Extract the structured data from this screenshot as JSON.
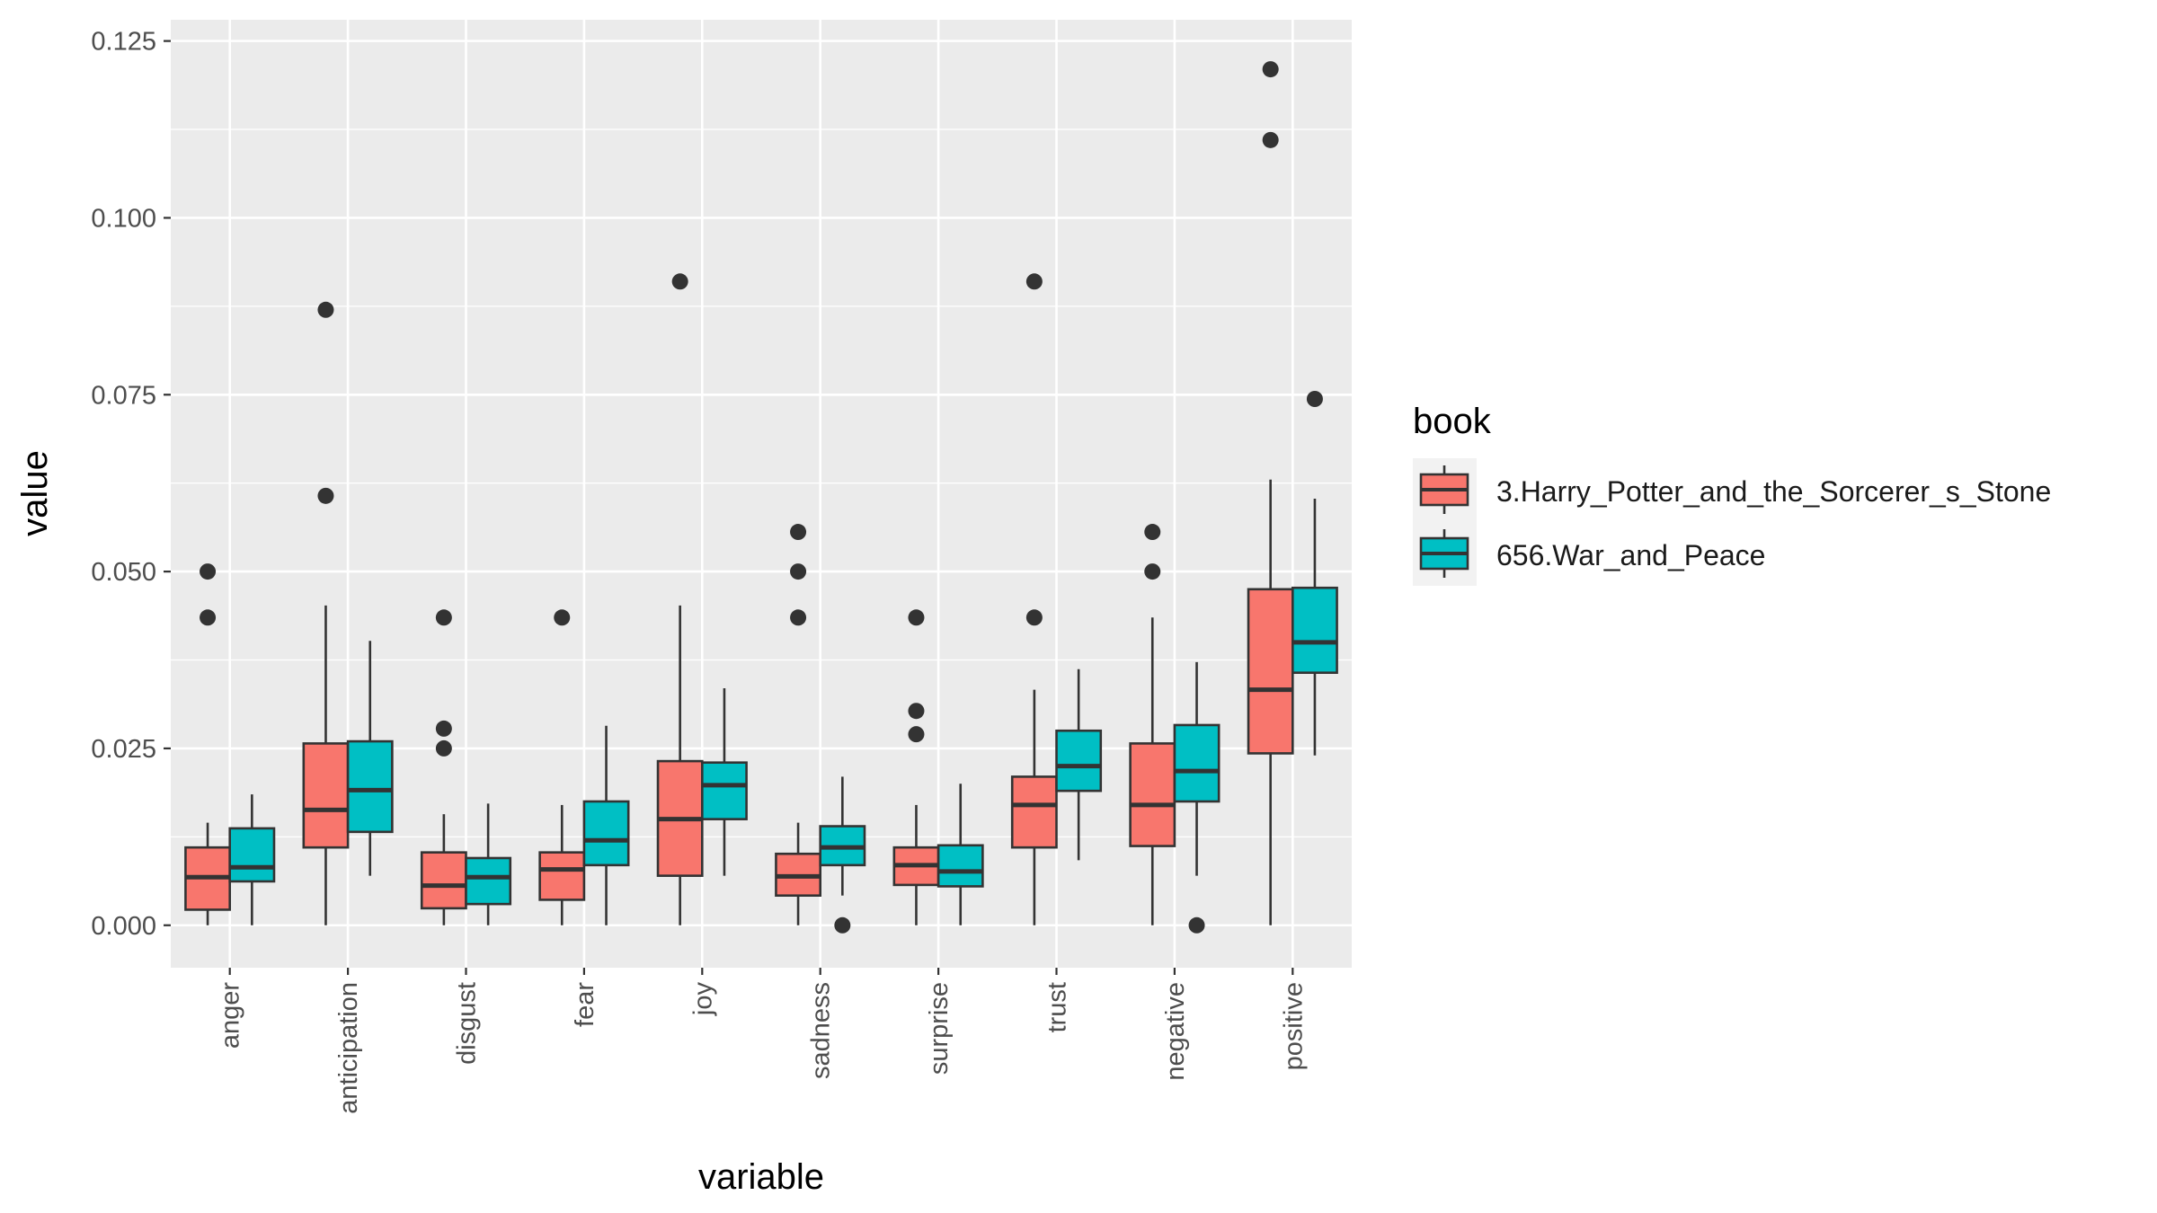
{
  "chart_data": {
    "type": "boxplot",
    "xlabel": "variable",
    "ylabel": "value",
    "ylim": [
      -0.006,
      0.128
    ],
    "y_ticks": [
      0.0,
      0.025,
      0.05,
      0.075,
      0.1,
      0.125
    ],
    "y_tick_labels": [
      "0.000",
      "0.025",
      "0.050",
      "0.075",
      "0.100",
      "0.125"
    ],
    "categories": [
      "anger",
      "anticipation",
      "disgust",
      "fear",
      "joy",
      "sadness",
      "surprise",
      "trust",
      "negative",
      "positive"
    ],
    "legend": {
      "title": "book",
      "placement": "right"
    },
    "grid": true,
    "series": [
      {
        "name": "3.Harry_Potter_and_the_Sorcerer_s_Stone",
        "color": "#F8766D",
        "boxes": [
          {
            "min": 0.0,
            "q1": 0.0022,
            "median": 0.0068,
            "q3": 0.011,
            "max": 0.0145,
            "outliers": [
              0.0435,
              0.05
            ]
          },
          {
            "min": 0.0,
            "q1": 0.011,
            "median": 0.0163,
            "q3": 0.0257,
            "max": 0.0452,
            "outliers": [
              0.0607,
              0.087
            ]
          },
          {
            "min": 0.0,
            "q1": 0.0024,
            "median": 0.0056,
            "q3": 0.0103,
            "max": 0.0157,
            "outliers": [
              0.025,
              0.0278,
              0.0435
            ]
          },
          {
            "min": 0.0,
            "q1": 0.0036,
            "median": 0.0079,
            "q3": 0.0103,
            "max": 0.017,
            "outliers": [
              0.0435
            ]
          },
          {
            "min": 0.0,
            "q1": 0.007,
            "median": 0.015,
            "q3": 0.0232,
            "max": 0.0452,
            "outliers": [
              0.091
            ]
          },
          {
            "min": 0.0,
            "q1": 0.0042,
            "median": 0.0069,
            "q3": 0.0101,
            "max": 0.0145,
            "outliers": [
              0.0435,
              0.05,
              0.0556
            ]
          },
          {
            "min": 0.0,
            "q1": 0.0057,
            "median": 0.0085,
            "q3": 0.011,
            "max": 0.017,
            "outliers": [
              0.027,
              0.0303,
              0.0435
            ]
          },
          {
            "min": 0.0,
            "q1": 0.011,
            "median": 0.017,
            "q3": 0.021,
            "max": 0.0333,
            "outliers": [
              0.0435,
              0.091
            ]
          },
          {
            "min": 0.0,
            "q1": 0.0112,
            "median": 0.017,
            "q3": 0.0257,
            "max": 0.0435,
            "outliers": [
              0.05,
              0.0556
            ]
          },
          {
            "min": 0.0,
            "q1": 0.0243,
            "median": 0.0333,
            "q3": 0.0475,
            "max": 0.063,
            "outliers": [
              0.111,
              0.121
            ]
          }
        ]
      },
      {
        "name": "656.War_and_Peace",
        "color": "#00BFC4",
        "boxes": [
          {
            "min": 0.0,
            "q1": 0.0062,
            "median": 0.0082,
            "q3": 0.0137,
            "max": 0.0185,
            "outliers": []
          },
          {
            "min": 0.007,
            "q1": 0.0132,
            "median": 0.0191,
            "q3": 0.026,
            "max": 0.0402,
            "outliers": []
          },
          {
            "min": 0.0,
            "q1": 0.003,
            "median": 0.0068,
            "q3": 0.0095,
            "max": 0.0172,
            "outliers": []
          },
          {
            "min": 0.0,
            "q1": 0.0085,
            "median": 0.012,
            "q3": 0.0175,
            "max": 0.0282,
            "outliers": []
          },
          {
            "min": 0.007,
            "q1": 0.015,
            "median": 0.0198,
            "q3": 0.023,
            "max": 0.0335,
            "outliers": []
          },
          {
            "min": 0.0042,
            "q1": 0.0085,
            "median": 0.011,
            "q3": 0.014,
            "max": 0.021,
            "outliers": [
              0.0
            ]
          },
          {
            "min": 0.0,
            "q1": 0.0055,
            "median": 0.0076,
            "q3": 0.0113,
            "max": 0.02,
            "outliers": []
          },
          {
            "min": 0.0092,
            "q1": 0.019,
            "median": 0.0225,
            "q3": 0.0275,
            "max": 0.0362,
            "outliers": []
          },
          {
            "min": 0.007,
            "q1": 0.0175,
            "median": 0.0218,
            "q3": 0.0283,
            "max": 0.0372,
            "outliers": [
              0.0
            ]
          },
          {
            "min": 0.024,
            "q1": 0.0357,
            "median": 0.04,
            "q3": 0.0477,
            "max": 0.0603,
            "outliers": [
              0.0744
            ]
          }
        ]
      }
    ]
  }
}
